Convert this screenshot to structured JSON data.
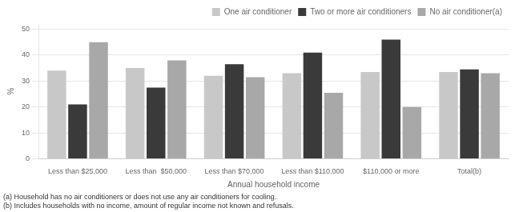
{
  "chart_data": {
    "type": "bar",
    "categories": [
      "Less than $25,000",
      "Less than  $50,000",
      "Less than $70,000",
      "Less than $110,000",
      "$110,000 or more",
      "Total(b)"
    ],
    "series": [
      {
        "name": "One air conditioner",
        "color": "#c8c8c8",
        "values": [
          34,
          35,
          32,
          33,
          33.5,
          33.5
        ]
      },
      {
        "name": "Two or more air conditioners",
        "color": "#3a3a3a",
        "values": [
          21,
          27.5,
          36.5,
          41,
          46,
          34.5
        ]
      },
      {
        "name": "No air conditioner(a)",
        "color": "#a8a8a8",
        "values": [
          45,
          38,
          31.5,
          25.5,
          20,
          33
        ]
      }
    ],
    "xlabel": "Annual household income",
    "ylabel": "%",
    "ylim": [
      0,
      52
    ],
    "yticks": [
      0,
      10,
      20,
      30,
      40,
      50
    ],
    "grid": true,
    "legend": "upper right",
    "annotations": [
      "(a) Household has no air conditioners or does not use any air conditioners for cooling.",
      "(b) Includes households with no income, amount of regular income not known and refusals."
    ]
  }
}
